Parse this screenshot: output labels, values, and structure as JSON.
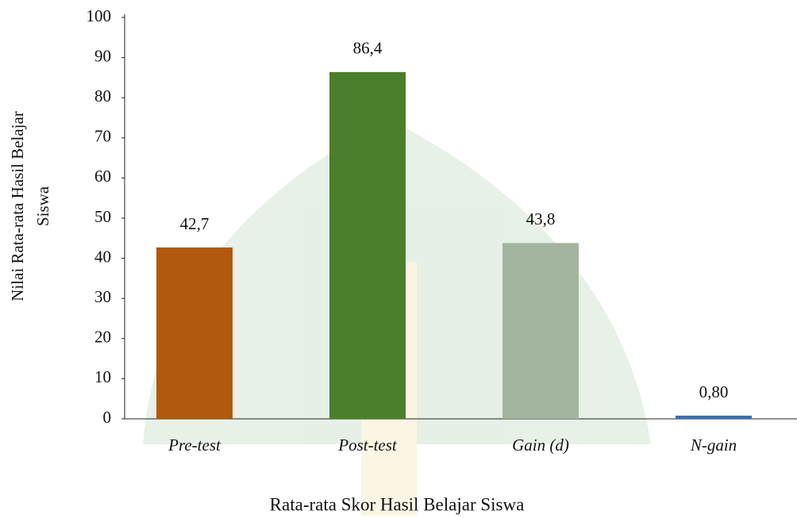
{
  "chart_data": {
    "type": "bar",
    "xlabel": "Rata-rata Skor Hasil Belajar Siswa",
    "ylabel": [
      "Nilai Rata-rata Hasil Belajar",
      "Siswa"
    ],
    "categories": [
      "Pre-test",
      "Post-test",
      "Gain (d)",
      "N-gain"
    ],
    "values": [
      42.7,
      86.4,
      43.8,
      0.8
    ],
    "value_labels": [
      "42,7",
      "86,4",
      "43,8",
      "0,80"
    ],
    "colors": [
      "#b0590f",
      "#4b7f2c",
      "#a3b59f",
      "#3d6faa"
    ],
    "ylim": [
      0,
      100
    ],
    "yticks": [
      0,
      10,
      20,
      30,
      40,
      50,
      60,
      70,
      80,
      90,
      100
    ],
    "grid": false
  }
}
